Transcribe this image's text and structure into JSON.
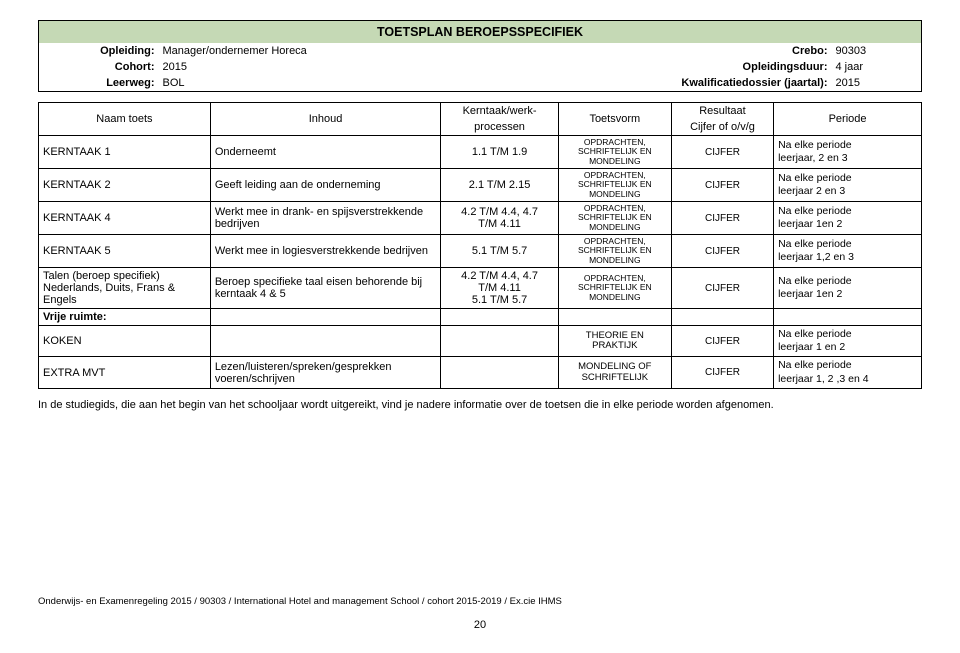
{
  "header": {
    "title": "TOETSPLAN BEROEPSSPECIFIEK",
    "rows": [
      {
        "l1": "Opleiding:",
        "v1": "Manager/ondernemer Horeca",
        "l2": "Crebo:",
        "v2": "90303"
      },
      {
        "l1": "Cohort:",
        "v1": "2015",
        "l2": "Opleidingsduur:",
        "v2": "4 jaar"
      },
      {
        "l1": "Leerweg:",
        "v1": "BOL",
        "l2": "Kwalificatiedossier (jaartal):",
        "v2": "2015"
      }
    ]
  },
  "columns": {
    "name": "Naam toets",
    "content": "Inhoud",
    "proc_top": "Kerntaak/werk-",
    "proc_bot": "processen",
    "form": "Toetsvorm",
    "res_top": "Resultaat",
    "res_bot": "Cijfer of o/v/g",
    "period": "Periode"
  },
  "rows": [
    {
      "name": "KERNTAAK 1",
      "content": "Onderneemt",
      "proc": "1.1 T/M 1.9",
      "form": "OPDRACHTEN,\nSCHRIFTELIJK EN\nMONDELING",
      "res": "CIJFER",
      "period": "Na elke periode\nleerjaar, 2 en 3"
    },
    {
      "name": "KERNTAAK 2",
      "content": "Geeft leiding aan de onderneming",
      "proc": "2.1 T/M 2.15",
      "form": "OPDRACHTEN,\nSCHRIFTELIJK EN\nMONDELING",
      "res": "CIJFER",
      "period": "Na elke periode\nleerjaar  2 en 3"
    },
    {
      "name": "KERNTAAK 4",
      "content": "Werkt mee in drank- en spijsverstrekkende bedrijven",
      "proc": "4.2 T/M 4.4, 4.7\nT/M 4.11",
      "form": "OPDRACHTEN,\nSCHRIFTELIJK EN\nMONDELING",
      "res": "CIJFER",
      "period": "Na elke periode\nleerjaar  1en 2"
    },
    {
      "name": "KERNTAAK 5",
      "content": "Werkt mee in logiesverstrekkende bedrijven",
      "proc": "5.1 T/M 5.7",
      "form": "OPDRACHTEN,\nSCHRIFTELIJK EN\nMONDELING",
      "res": "CIJFER",
      "period": "Na elke periode\nleerjaar  1,2 en 3"
    },
    {
      "name": "Talen (beroep specifiek)\nNederlands, Duits, Frans & Engels",
      "content": "Beroep specifieke taal eisen behorende bij kerntaak 4 & 5",
      "proc": "4.2 T/M 4.4, 4.7\nT/M 4.11\n5.1 T/M 5.7",
      "form": "OPDRACHTEN,\nSCHRIFTELIJK EN\nMONDELING",
      "res": "CIJFER",
      "period": "Na elke periode\nleerjaar  1en 2"
    },
    {
      "name": "Vrije ruimte:",
      "content": "",
      "proc": "",
      "form": "",
      "res": "",
      "period": "",
      "bold": true
    },
    {
      "name": "KOKEN",
      "content": "",
      "proc": "",
      "form": "THEORIE EN\nPRAKTIJK",
      "res": "CIJFER",
      "period": "Na elke periode\nleerjaar 1 en 2",
      "form_size": "9.5px"
    },
    {
      "name": "EXTRA MVT",
      "content": "Lezen/luisteren/spreken/gesprekken voeren/schrijven",
      "proc": "",
      "form": "MONDELING OF\nSCHRIFTELIJK",
      "res": "CIJFER",
      "period": "Na elke periode\nleerjaar 1, 2 ,3 en 4",
      "form_size": "9.5px"
    }
  ],
  "note": "In de studiegids, die aan het begin van het schooljaar wordt uitgereikt, vind je nadere informatie over de toetsen die in elke periode worden afgenomen.",
  "footer": "Onderwijs- en Examenregeling 2015 / 90303 / International Hotel and management School / cohort 2015-2019 / Ex.cie IHMS",
  "page_number": "20"
}
